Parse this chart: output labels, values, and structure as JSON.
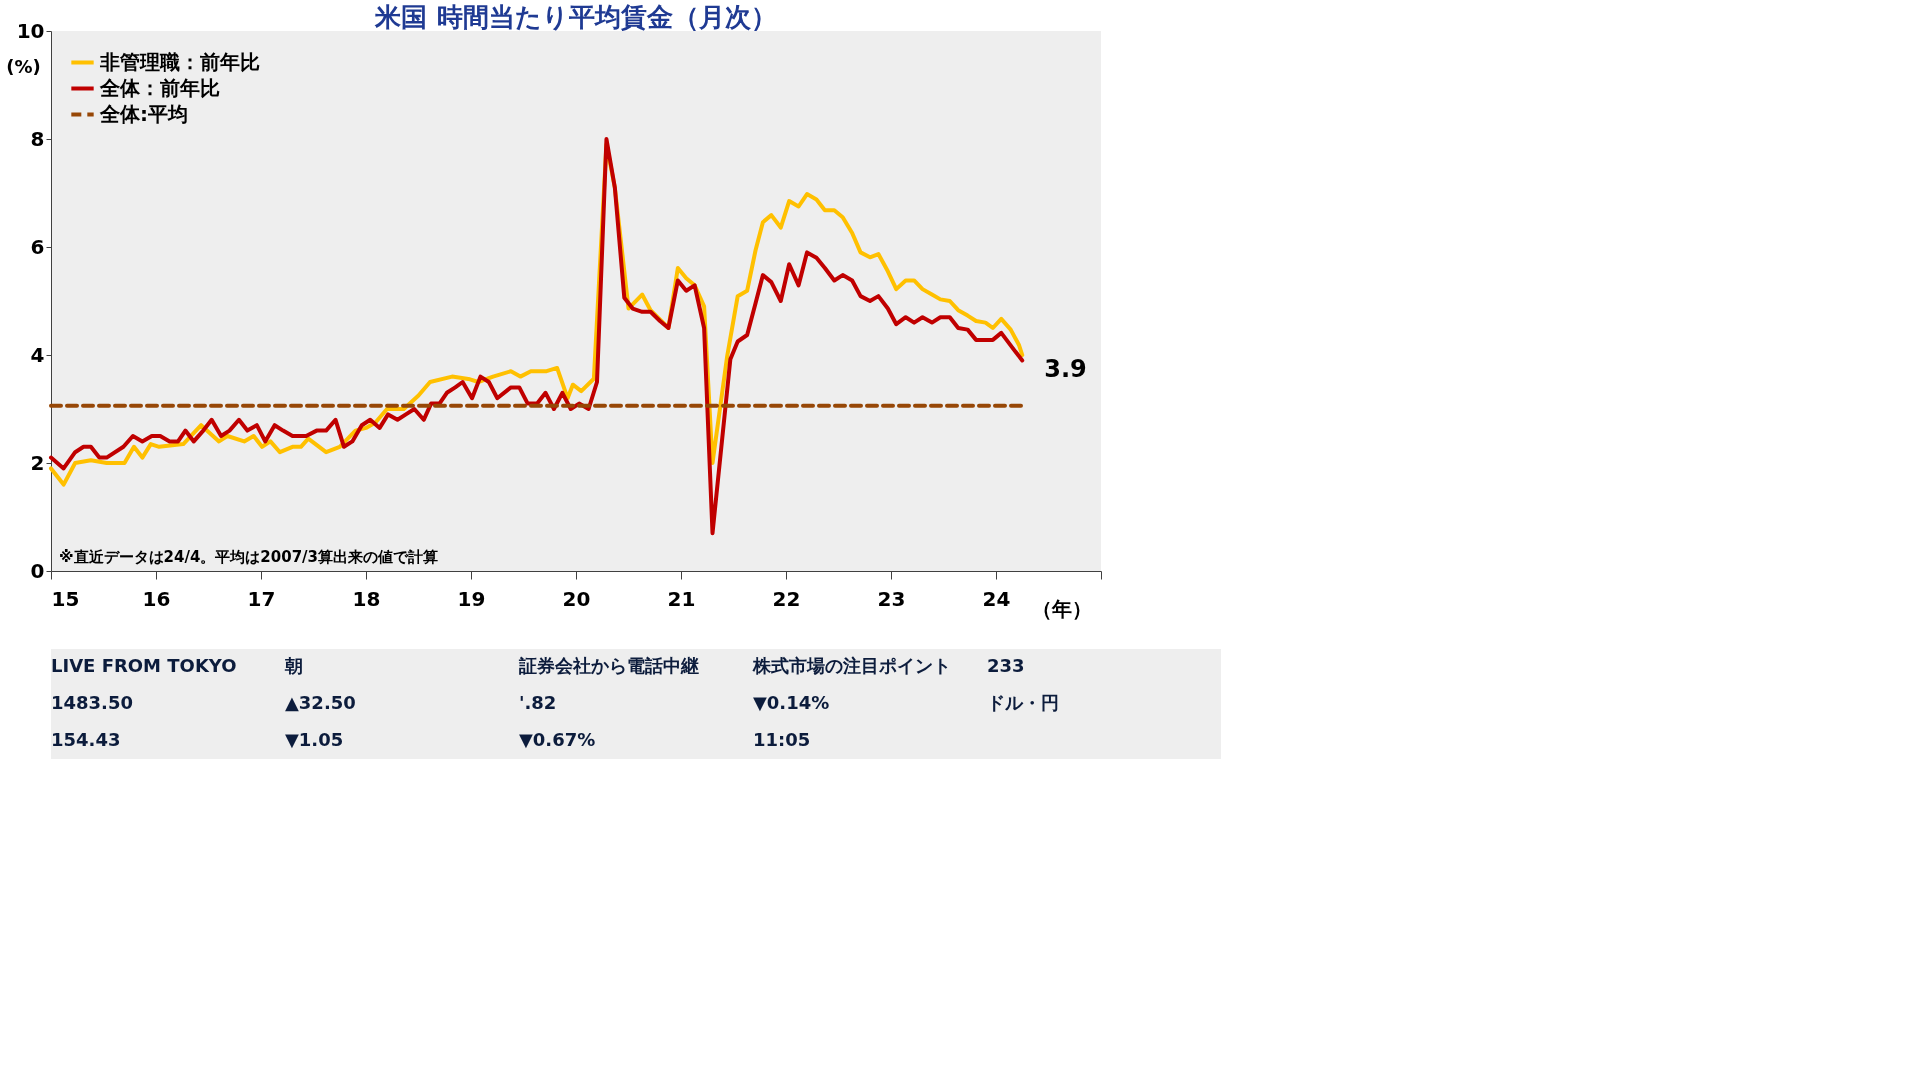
{
  "chart_data": {
    "type": "line",
    "title": "米国 時間当たり平均賃金（月次）",
    "ylabel": "(%)",
    "xlabel": "（年）",
    "xlim": [
      15,
      25
    ],
    "xticks": [
      15,
      16,
      17,
      18,
      19,
      20,
      21,
      22,
      23,
      24,
      {
        "value": 25,
        "label": null
      }
    ],
    "ylim": [
      0,
      10
    ],
    "yticks": [
      0,
      2,
      4,
      6,
      8,
      10
    ],
    "grid": false,
    "legend": "top left",
    "line_style": "solid",
    "marker": "none",
    "series": [
      {
        "name": "非管理職：前年比",
        "color": "#ffc000",
        "x": [
          15.0,
          15.12,
          15.23,
          15.38,
          15.53,
          15.7,
          15.79,
          15.87,
          15.95,
          16.03,
          16.26,
          16.43,
          16.6,
          16.68,
          16.84,
          16.93,
          17.01,
          17.09,
          17.18,
          17.3,
          17.38,
          17.45,
          17.62,
          17.75,
          17.9,
          18.0,
          18.09,
          18.2,
          18.36,
          18.5,
          18.61,
          18.82,
          18.99,
          19.07,
          19.21,
          19.38,
          19.47,
          19.57,
          19.72,
          19.82,
          19.92,
          19.97,
          20.05,
          20.17,
          20.29,
          20.37,
          20.5,
          20.63,
          20.71,
          20.88,
          20.97,
          21.05,
          21.13,
          21.22,
          21.3,
          21.44,
          21.54,
          21.63,
          21.71,
          21.78,
          21.86,
          21.95,
          22.03,
          22.12,
          22.2,
          22.29,
          22.37,
          22.46,
          22.54,
          22.63,
          22.71,
          22.8,
          22.88,
          22.97,
          23.05,
          23.14,
          23.22,
          23.3,
          23.39,
          23.47,
          23.56,
          23.64,
          23.73,
          23.81,
          23.9,
          23.97,
          24.05,
          24.14,
          24.22,
          24.25
        ],
        "values": [
          1.9,
          1.6,
          2.0,
          2.05,
          2.0,
          2.0,
          2.3,
          2.1,
          2.35,
          2.3,
          2.35,
          2.7,
          2.4,
          2.5,
          2.4,
          2.5,
          2.3,
          2.4,
          2.2,
          2.3,
          2.3,
          2.45,
          2.2,
          2.3,
          2.6,
          2.65,
          2.75,
          3.0,
          3.0,
          3.25,
          3.5,
          3.6,
          3.55,
          3.5,
          3.6,
          3.7,
          3.6,
          3.7,
          3.7,
          3.76,
          3.2,
          3.45,
          3.33,
          3.56,
          7.9,
          7.1,
          4.86,
          5.12,
          4.83,
          4.5,
          5.61,
          5.42,
          5.29,
          4.9,
          2.0,
          3.98,
          5.09,
          5.19,
          5.94,
          6.46,
          6.59,
          6.36,
          6.85,
          6.75,
          6.98,
          6.88,
          6.68,
          6.68,
          6.55,
          6.26,
          5.9,
          5.81,
          5.87,
          5.55,
          5.22,
          5.38,
          5.38,
          5.22,
          5.12,
          5.03,
          5.0,
          4.83,
          4.73,
          4.63,
          4.6,
          4.5,
          4.67,
          4.47,
          4.18,
          4.0
        ]
      },
      {
        "name": "全体：前年比",
        "color": "#c00000",
        "x": [
          15.0,
          15.12,
          15.23,
          15.31,
          15.38,
          15.46,
          15.53,
          15.69,
          15.78,
          15.87,
          15.96,
          16.04,
          16.13,
          16.21,
          16.28,
          16.36,
          16.45,
          16.53,
          16.62,
          16.7,
          16.79,
          16.87,
          16.96,
          17.04,
          17.13,
          17.21,
          17.3,
          17.43,
          17.53,
          17.62,
          17.71,
          17.79,
          17.87,
          17.96,
          18.04,
          18.13,
          18.21,
          18.3,
          18.38,
          18.46,
          18.55,
          18.62,
          18.7,
          18.77,
          18.85,
          18.92,
          19.01,
          19.09,
          19.17,
          19.25,
          19.38,
          19.46,
          19.54,
          19.63,
          19.71,
          19.79,
          19.87,
          19.95,
          20.03,
          20.12,
          20.2,
          20.29,
          20.37,
          20.46,
          20.54,
          20.63,
          20.71,
          20.8,
          20.88,
          20.97,
          21.05,
          21.13,
          21.22,
          21.3,
          21.47,
          21.54,
          21.63,
          21.71,
          21.78,
          21.86,
          21.95,
          22.03,
          22.12,
          22.2,
          22.29,
          22.37,
          22.46,
          22.54,
          22.63,
          22.71,
          22.8,
          22.88,
          22.97,
          23.05,
          23.14,
          23.22,
          23.3,
          23.39,
          23.47,
          23.56,
          23.64,
          23.73,
          23.81,
          23.9,
          23.97,
          24.05,
          24.17,
          24.25
        ],
        "values": [
          2.1,
          1.9,
          2.2,
          2.3,
          2.3,
          2.1,
          2.1,
          2.3,
          2.5,
          2.4,
          2.5,
          2.5,
          2.4,
          2.4,
          2.6,
          2.4,
          2.6,
          2.8,
          2.5,
          2.6,
          2.8,
          2.6,
          2.7,
          2.4,
          2.7,
          2.6,
          2.5,
          2.5,
          2.6,
          2.6,
          2.8,
          2.3,
          2.4,
          2.7,
          2.8,
          2.65,
          2.9,
          2.8,
          2.9,
          3.0,
          2.8,
          3.1,
          3.1,
          3.3,
          3.4,
          3.5,
          3.2,
          3.6,
          3.5,
          3.2,
          3.4,
          3.4,
          3.1,
          3.1,
          3.3,
          3.0,
          3.3,
          3.0,
          3.1,
          3.0,
          3.5,
          8.0,
          7.1,
          5.06,
          4.86,
          4.8,
          4.8,
          4.63,
          4.5,
          5.38,
          5.19,
          5.29,
          4.5,
          0.7,
          3.92,
          4.25,
          4.37,
          4.96,
          5.48,
          5.35,
          5.0,
          5.68,
          5.29,
          5.9,
          5.8,
          5.61,
          5.38,
          5.48,
          5.38,
          5.09,
          5.0,
          5.09,
          4.86,
          4.57,
          4.7,
          4.6,
          4.7,
          4.6,
          4.7,
          4.7,
          4.5,
          4.47,
          4.28,
          4.28,
          4.28,
          4.41,
          4.1,
          3.9
        ]
      },
      {
        "name": "全体:平均",
        "color": "#974706",
        "line_style": "dashed",
        "x": [
          15.0,
          24.25
        ],
        "values": [
          3.06,
          3.06
        ]
      }
    ],
    "annotations": [
      "※直近データは24/4。平均は2007/3算出来の値で計算",
      {
        "text": "3.9",
        "x": 24.25,
        "y": 3.9
      },
      "LIVE FROM TOKYO",
      "朝",
      "証券会社から電話中継",
      "株式市場の注目ポイント",
      "233",
      "1483.50",
      "▲32.50",
      "'.82",
      "▼0.14%",
      "ドル・円",
      "154.43",
      "▼1.05",
      "▼0.67%",
      "11:05"
    ]
  }
}
